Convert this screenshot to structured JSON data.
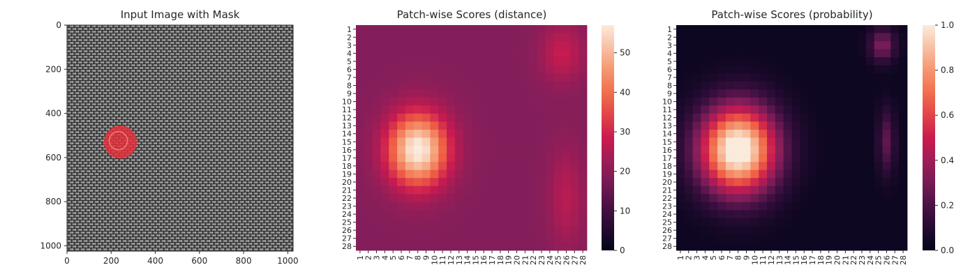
{
  "colors": {
    "tick": "#262626",
    "mask": "#e8303a",
    "colormap": "rocket",
    "colormap_stops": [
      "#03051a",
      "#3b0f40",
      "#841e5a",
      "#cb1b4f",
      "#f06043",
      "#f6a47c",
      "#faebdd"
    ]
  },
  "chart_data": [
    {
      "type": "image",
      "title": "Input Image with Mask",
      "xlim": [
        0,
        1024
      ],
      "ylim": [
        1024,
        0
      ],
      "xticks": [
        0,
        200,
        400,
        600,
        800,
        1000
      ],
      "yticks": [
        0,
        200,
        400,
        600,
        800,
        1000
      ],
      "xtick_labels": [
        "0",
        "200",
        "400",
        "600",
        "800",
        "1000"
      ],
      "ytick_labels": [
        "0",
        "200",
        "400",
        "600",
        "800",
        "1000"
      ],
      "mask_region": {
        "center": [
          242,
          530
        ],
        "radius": 75,
        "color": "red"
      },
      "texture": "gray woven fabric"
    },
    {
      "type": "heatmap",
      "title": "Patch-wise Scores (distance)",
      "rows": 28,
      "cols": 28,
      "row_labels": [
        "1",
        "2",
        "3",
        "4",
        "5",
        "6",
        "7",
        "8",
        "9",
        "10",
        "11",
        "12",
        "13",
        "14",
        "15",
        "16",
        "17",
        "18",
        "19",
        "20",
        "21",
        "22",
        "23",
        "24",
        "25",
        "26",
        "27",
        "28"
      ],
      "col_labels": [
        "1",
        "2",
        "3",
        "4",
        "5",
        "6",
        "7",
        "8",
        "9",
        "10",
        "11",
        "12",
        "13",
        "14",
        "15",
        "16",
        "17",
        "18",
        "19",
        "20",
        "21",
        "22",
        "23",
        "24",
        "25",
        "26",
        "27",
        "28"
      ],
      "vmin": 0,
      "vmax": 57,
      "colorbar_ticks": [
        0,
        10,
        20,
        30,
        40,
        50
      ],
      "colorbar_labels": [
        "0",
        "10",
        "20",
        "30",
        "40",
        "50"
      ],
      "base": 19,
      "blobs": [
        {
          "row": 16,
          "col": 8,
          "peak": 39,
          "rx": 3.6,
          "ry": 4.5
        },
        {
          "row": 4,
          "col": 25.5,
          "peak": 9,
          "rx": 2.5,
          "ry": 3.5
        },
        {
          "row": 22,
          "col": 26,
          "peak": 7,
          "rx": 2.0,
          "ry": 6.0
        }
      ]
    },
    {
      "type": "heatmap",
      "title": "Patch-wise Scores (probability)",
      "rows": 28,
      "cols": 28,
      "row_labels": [
        "1",
        "2",
        "3",
        "4",
        "5",
        "6",
        "7",
        "8",
        "9",
        "10",
        "11",
        "12",
        "13",
        "14",
        "15",
        "16",
        "17",
        "18",
        "19",
        "20",
        "21",
        "22",
        "23",
        "24",
        "25",
        "26",
        "27",
        "28"
      ],
      "col_labels": [
        "1",
        "2",
        "3",
        "4",
        "5",
        "6",
        "7",
        "8",
        "9",
        "10",
        "11",
        "12",
        "13",
        "14",
        "15",
        "16",
        "17",
        "18",
        "19",
        "20",
        "21",
        "22",
        "23",
        "24",
        "25",
        "26",
        "27",
        "28"
      ],
      "vmin": 0,
      "vmax": 1.0,
      "colorbar_ticks": [
        0.0,
        0.2,
        0.4,
        0.6,
        0.8,
        1.0
      ],
      "colorbar_labels": [
        "0.0",
        "0.2",
        "0.4",
        "0.6",
        "0.8",
        "1.0"
      ],
      "base": 0.03,
      "blobs": [
        {
          "row": 16,
          "col": 8,
          "peak": 1.05,
          "rx": 4.6,
          "ry": 5.4
        },
        {
          "row": 3,
          "col": 25.5,
          "peak": 0.3,
          "rx": 1.5,
          "ry": 2.0
        },
        {
          "row": 15,
          "col": 26,
          "peak": 0.22,
          "rx": 1.0,
          "ry": 4.0
        }
      ]
    }
  ]
}
